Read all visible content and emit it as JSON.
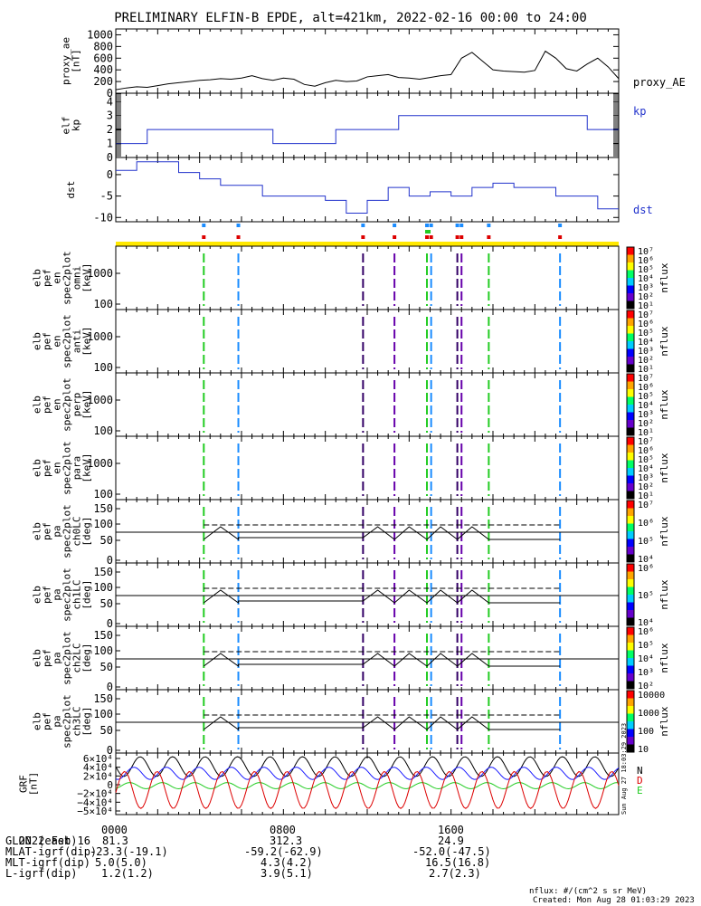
{
  "title": "PRELIMINARY ELFIN-B EPDE, alt=421km, 2022-02-16 00:00 to 24:00",
  "colors": {
    "kp": "#2233cc",
    "proxy": "#000000",
    "yellow": "#ffe800",
    "red": "#dd0000",
    "blue": "#1a8cff",
    "green": "#22cc22"
  },
  "chart_data": [
    {
      "type": "line",
      "id": "proxy_ae",
      "ylabel": [
        "proxy_ae",
        "[nT]"
      ],
      "yticks": [
        0,
        200,
        400,
        600,
        800,
        1000
      ],
      "ylim": [
        0,
        1100
      ],
      "series": [
        {
          "name": "proxy_AE",
          "x": [
            0,
            0.5,
            1,
            1.5,
            2,
            2.5,
            3,
            3.5,
            4,
            4.5,
            5,
            5.5,
            6,
            6.5,
            7,
            7.5,
            8,
            8.5,
            9,
            9.5,
            10,
            10.5,
            11,
            11.5,
            12,
            12.5,
            13,
            13.5,
            14,
            14.5,
            15,
            15.5,
            16,
            16.5,
            17,
            17.5,
            18,
            18.5,
            19,
            19.5,
            20,
            20.5,
            21,
            21.5,
            22,
            22.5,
            23,
            23.5,
            24
          ],
          "y": [
            60,
            90,
            110,
            100,
            130,
            160,
            180,
            200,
            220,
            230,
            250,
            240,
            260,
            300,
            250,
            220,
            260,
            240,
            150,
            120,
            180,
            220,
            200,
            210,
            280,
            300,
            320,
            270,
            260,
            240,
            270,
            300,
            320,
            600,
            700,
            550,
            400,
            380,
            370,
            360,
            390,
            720,
            600,
            420,
            380,
            500,
            600,
            450,
            250
          ]
        }
      ]
    },
    {
      "type": "line",
      "id": "kp",
      "ylabel": [
        "elf",
        "kp"
      ],
      "yticks": [
        0,
        1,
        2,
        3,
        4
      ],
      "ylim": [
        0,
        4.6
      ],
      "series": [
        {
          "name": "kp",
          "steps": [
            [
              0,
              1
            ],
            [
              1.5,
              2
            ],
            [
              7.5,
              1
            ],
            [
              10.5,
              2
            ],
            [
              13.5,
              3
            ],
            [
              22.5,
              2
            ],
            [
              24,
              2
            ]
          ]
        }
      ]
    },
    {
      "type": "line",
      "id": "dst",
      "ylabel": [
        "dst"
      ],
      "yticks": [
        0,
        -5,
        -10
      ],
      "ylim": [
        -11,
        4
      ],
      "series": [
        {
          "name": "dst",
          "steps": [
            [
              0,
              1
            ],
            [
              1,
              3
            ],
            [
              3,
              0.5
            ],
            [
              4,
              -1
            ],
            [
              5,
              -2.5
            ],
            [
              7,
              -5
            ],
            [
              10,
              -6
            ],
            [
              11,
              -9
            ],
            [
              12,
              -6
            ],
            [
              13,
              -3
            ],
            [
              14,
              -5
            ],
            [
              15,
              -4
            ],
            [
              16,
              -5
            ],
            [
              17,
              -3
            ],
            [
              18,
              -2
            ],
            [
              19,
              -3
            ],
            [
              21,
              -5
            ],
            [
              23,
              -8
            ],
            [
              24,
              -8
            ]
          ]
        }
      ]
    }
  ],
  "spec_panels": [
    {
      "ylabel": [
        "elb",
        "pef",
        "en",
        "spec2plot",
        "omni",
        "[keV]"
      ],
      "yticks": [
        "1000",
        "100"
      ]
    },
    {
      "ylabel": [
        "elb",
        "pef",
        "en",
        "spec2plot",
        "anti",
        "[keV]"
      ],
      "yticks": [
        "1000",
        "100"
      ]
    },
    {
      "ylabel": [
        "elb",
        "pef",
        "en",
        "spec2plot",
        "perp",
        "[keV]"
      ],
      "yticks": [
        "1000",
        "100"
      ]
    },
    {
      "ylabel": [
        "elb",
        "pef",
        "en",
        "spec2plot",
        "para",
        "[keV]"
      ],
      "yticks": [
        "1000",
        "100"
      ]
    }
  ],
  "pa_panels": [
    {
      "ylabel": [
        "elb",
        "pef",
        "pa",
        "spec2plot",
        "ch0LC",
        "[deg]"
      ],
      "yticks": [
        "150",
        "100",
        "50",
        "0"
      ]
    },
    {
      "ylabel": [
        "elb",
        "pef",
        "pa",
        "spec2plot",
        "ch1LC",
        "[deg]"
      ],
      "yticks": [
        "150",
        "100",
        "50",
        "0"
      ]
    },
    {
      "ylabel": [
        "elb",
        "pef",
        "pa",
        "spec2plot",
        "ch2LC",
        "[deg]"
      ],
      "yticks": [
        "150",
        "100",
        "50",
        "0"
      ]
    },
    {
      "ylabel": [
        "elb",
        "pef",
        "pa",
        "spec2plot",
        "ch3LC",
        "[deg]"
      ],
      "yticks": [
        "150",
        "100",
        "50",
        "0"
      ]
    }
  ],
  "colorbars": [
    {
      "ticks": [
        "10⁷",
        "10⁶",
        "10⁵",
        "10⁴",
        "10³",
        "10²",
        "10¹"
      ],
      "label": "nflux"
    },
    {
      "ticks": [
        "10⁷",
        "10⁶",
        "10⁵",
        "10⁴",
        "10³",
        "10²",
        "10¹"
      ],
      "label": "nflux"
    },
    {
      "ticks": [
        "10⁷",
        "10⁶",
        "10⁵",
        "10⁴",
        "10³",
        "10²",
        "10¹"
      ],
      "label": "nflux"
    },
    {
      "ticks": [
        "10⁷",
        "10⁶",
        "10⁵",
        "10⁴",
        "10³",
        "10²",
        "10¹"
      ],
      "label": "nflux"
    },
    {
      "ticks": [
        "10⁷",
        "10⁶",
        "10⁵",
        "10⁴"
      ],
      "label": "nflux"
    },
    {
      "ticks": [
        "10⁶",
        "10⁵",
        "10⁴"
      ],
      "label": "nflux"
    },
    {
      "ticks": [
        "10⁶",
        "10⁵",
        "10⁴",
        "10³",
        "10²"
      ],
      "label": "nflux"
    },
    {
      "ticks": [
        "10000",
        "1000",
        "100",
        "10"
      ],
      "label": "nflux"
    }
  ],
  "grf": {
    "ylabel": [
      "GRF",
      "[nT]"
    ],
    "yticks": [
      "6×10⁴",
      "4×10⁴",
      "2×10⁴",
      "0",
      "−2×10⁴",
      "−4×10⁴",
      "−5×10⁴"
    ],
    "legend": [
      "N",
      "D",
      "E"
    ]
  },
  "passes": [
    4.2,
    5.85,
    11.8,
    13.3,
    14.85,
    15.05,
    16.3,
    16.5,
    17.8,
    21.2
  ],
  "footer": {
    "rows": [
      [
        "2022 Feb 16",
        "0000",
        "0800",
        "1600"
      ],
      [
        "GLON (east)",
        "81.3",
        "312.3",
        "24.9"
      ],
      [
        "MLAT-igrf(dip)",
        "-23.3(-19.1)",
        "-59.2(-62.9)",
        "-52.0(-47.5)"
      ],
      [
        "MLT-igrf(dip)",
        "5.0(5.0)",
        "4.3(4.2)",
        "16.5(16.8)"
      ],
      [
        "L-igrf(dip)",
        "1.2(1.2)",
        "3.9(5.1)",
        "2.7(2.3)"
      ]
    ],
    "units": "nflux: #/(cm^2 s sr MeV)",
    "created": "Created: Mon Aug 28 01:03:29 2023",
    "side": "Sun Aug 27 18:03:29 2023"
  },
  "right_labels": {
    "proxy": "proxy_AE",
    "kp": "kp",
    "dst": "dst"
  }
}
